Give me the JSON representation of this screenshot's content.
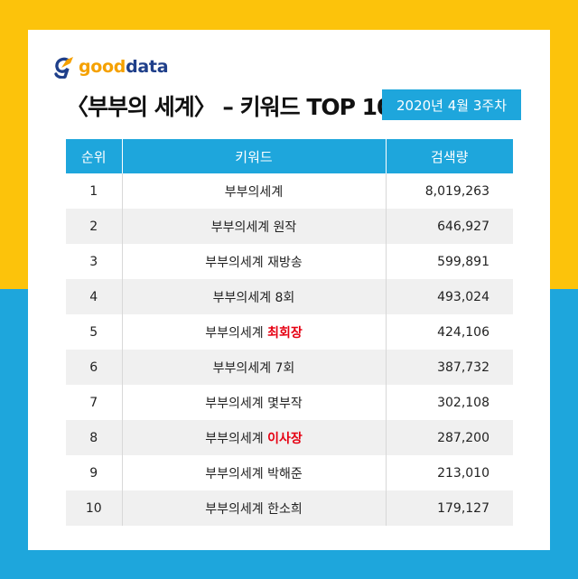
{
  "brand": {
    "good": "good",
    "data": "data"
  },
  "title": "〈부부의 세계〉 – 키워드 TOP 10",
  "date_badge": "2020년 4월 3주차",
  "colors": {
    "yellow": "#fcc30b",
    "blue": "#1ea6dc",
    "highlight": "#e60012"
  },
  "table": {
    "headers": [
      "순위",
      "키워드",
      "검색량"
    ],
    "rows": [
      {
        "rank": "1",
        "keyword": "부부의세계",
        "highlight": "",
        "volume": "8,019,263"
      },
      {
        "rank": "2",
        "keyword": "부부의세계 원작",
        "highlight": "",
        "volume": "646,927"
      },
      {
        "rank": "3",
        "keyword": "부부의세계 재방송",
        "highlight": "",
        "volume": "599,891"
      },
      {
        "rank": "4",
        "keyword": "부부의세계 8회",
        "highlight": "",
        "volume": "493,024"
      },
      {
        "rank": "5",
        "keyword": "부부의세계 ",
        "highlight": "최회장",
        "volume": "424,106"
      },
      {
        "rank": "6",
        "keyword": "부부의세계 7회",
        "highlight": "",
        "volume": "387,732"
      },
      {
        "rank": "7",
        "keyword": "부부의세계 몇부작",
        "highlight": "",
        "volume": "302,108"
      },
      {
        "rank": "8",
        "keyword": "부부의세계 ",
        "highlight": "이사장",
        "volume": "287,200"
      },
      {
        "rank": "9",
        "keyword": "부부의세계 박해준",
        "highlight": "",
        "volume": "213,010"
      },
      {
        "rank": "10",
        "keyword": "부부의세계 한소희",
        "highlight": "",
        "volume": "179,127"
      }
    ]
  }
}
